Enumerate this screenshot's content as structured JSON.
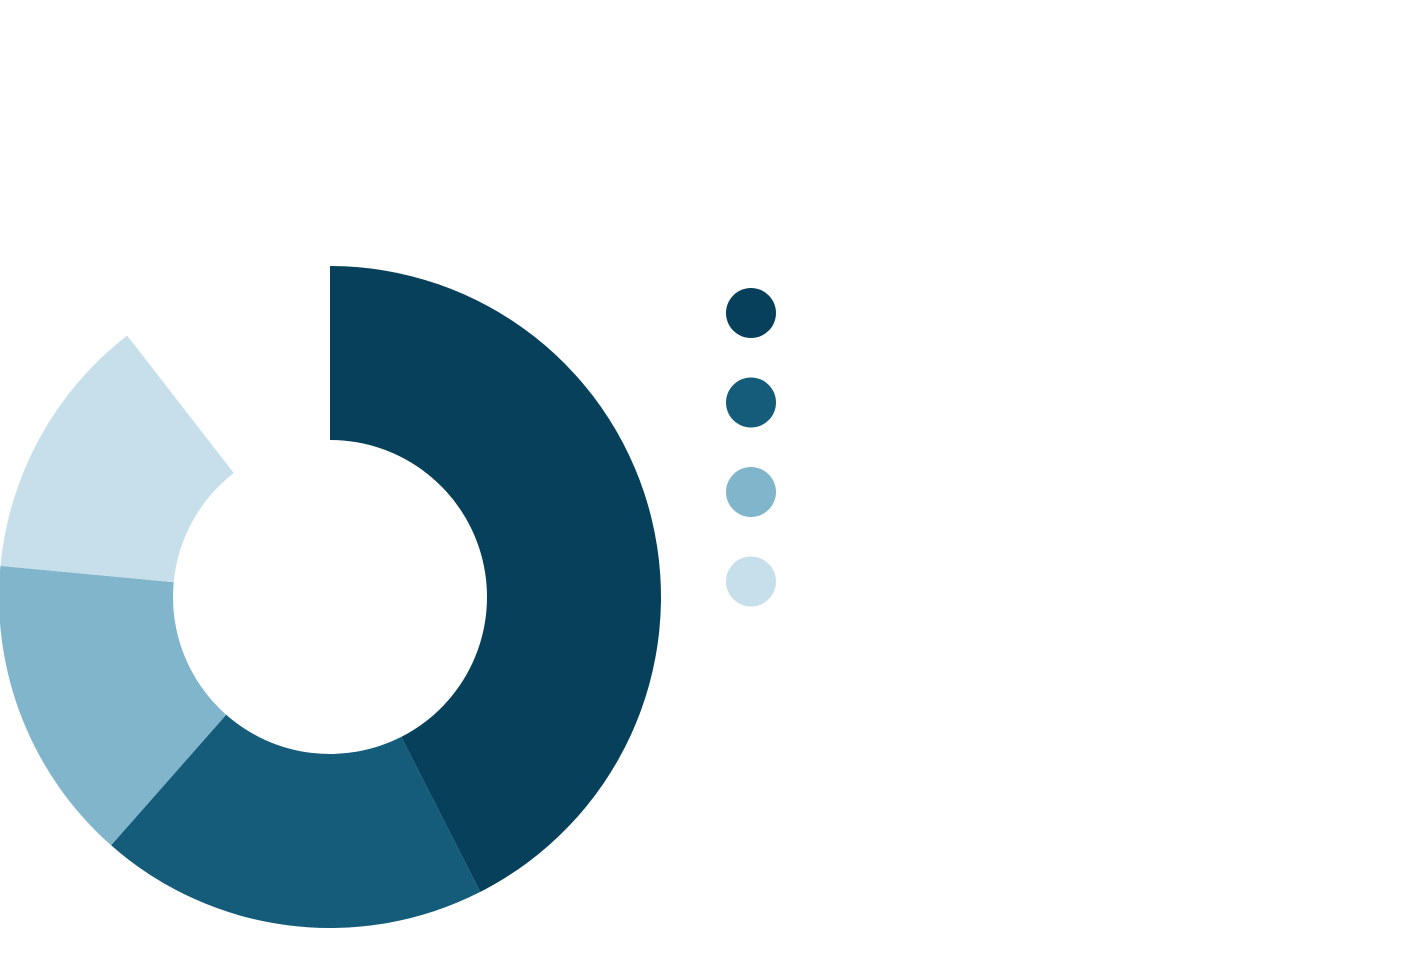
{
  "chart_data": {
    "type": "pie",
    "variant": "donut",
    "start_angle_deg": 0,
    "direction": "clockwise",
    "gap_at_end": true,
    "title": "",
    "legend_position": "right",
    "slices": [
      {
        "value": 42.5,
        "color": "#07405a"
      },
      {
        "value": 19.0,
        "color": "#145c79"
      },
      {
        "value": 15.0,
        "color": "#81b5cb"
      },
      {
        "value": 13.0,
        "color": "#c7dfea"
      }
    ],
    "legend": [
      {
        "color": "#07405a"
      },
      {
        "color": "#145c79"
      },
      {
        "color": "#81b5cb"
      },
      {
        "color": "#c7dfea"
      }
    ]
  }
}
